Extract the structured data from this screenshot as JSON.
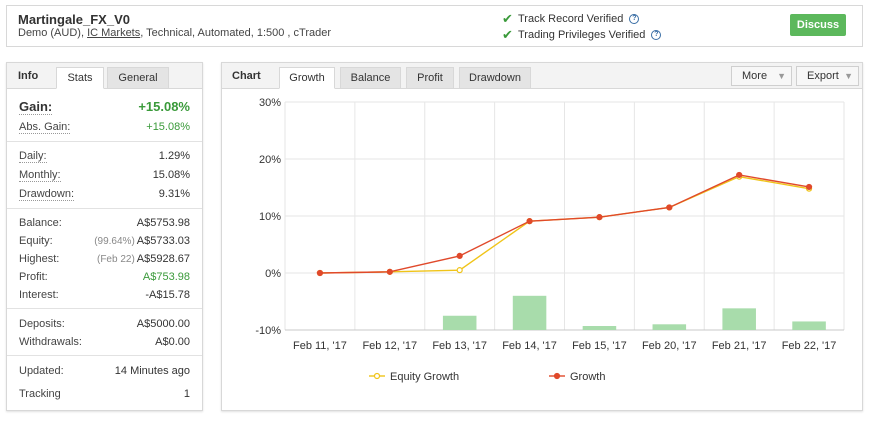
{
  "header": {
    "title": "Martingale_FX_V0",
    "subtitle_prefix": "Demo (AUD), ",
    "broker": "IC Markets",
    "subtitle_suffix": ", Technical, Automated, 1:500 , cTrader",
    "verify1": "Track Record Verified",
    "verify2": "Trading Privileges Verified",
    "discuss": "Discuss"
  },
  "left_tabs": {
    "info": "Info",
    "stats": "Stats",
    "general": "General"
  },
  "stats": {
    "gain_label": "Gain:",
    "gain_value": "+15.08%",
    "abs_gain_label": "Abs. Gain:",
    "abs_gain_value": "+15.08%",
    "daily_label": "Daily:",
    "daily_value": "1.29%",
    "monthly_label": "Monthly:",
    "monthly_value": "15.08%",
    "drawdown_label": "Drawdown:",
    "drawdown_value": "9.31%",
    "balance_label": "Balance:",
    "balance_value": "A$5753.98",
    "equity_label": "Equity:",
    "equity_note": "(99.64%)",
    "equity_value": "A$5733.03",
    "highest_label": "Highest:",
    "highest_note": "(Feb 22)",
    "highest_value": "A$5928.67",
    "profit_label": "Profit:",
    "profit_value": "A$753.98",
    "interest_label": "Interest:",
    "interest_value": "-A$15.78",
    "deposits_label": "Deposits:",
    "deposits_value": "A$5000.00",
    "withdrawals_label": "Withdrawals:",
    "withdrawals_value": "A$0.00",
    "updated_label": "Updated:",
    "updated_value": "14 Minutes ago",
    "tracking_label": "Tracking",
    "tracking_value": "1"
  },
  "chart_tabs": {
    "title": "Chart",
    "growth": "Growth",
    "balance": "Balance",
    "profit": "Profit",
    "drawdown": "Drawdown",
    "more": "More",
    "export": "Export"
  },
  "colors": {
    "growth": "#e0492b",
    "equity": "#f0c419",
    "bars": "#a8dcab",
    "green": "#3a9a3a",
    "discuss": "#5cb85c"
  },
  "chart_data": {
    "type": "line",
    "categories": [
      "Feb 11, '17",
      "Feb 12, '17",
      "Feb 13, '17",
      "Feb 14, '17",
      "Feb 15, '17",
      "Feb 20, '17",
      "Feb 21, '17",
      "Feb 22, '17"
    ],
    "y_ticks": [
      "30%",
      "20%",
      "10%",
      "0%",
      "-10%"
    ],
    "ylim": [
      -10,
      30
    ],
    "series": [
      {
        "name": "Equity Growth",
        "values": [
          0,
          0.2,
          0.5,
          9.1,
          9.8,
          11.5,
          16.9,
          14.8
        ]
      },
      {
        "name": "Growth",
        "values": [
          0,
          0.2,
          3.0,
          9.1,
          9.8,
          11.5,
          17.2,
          15.1
        ]
      }
    ],
    "bars": {
      "values": [
        0,
        0,
        2.5,
        6.0,
        0.7,
        1.0,
        3.8,
        1.5
      ]
    },
    "legend_position": "bottom"
  }
}
